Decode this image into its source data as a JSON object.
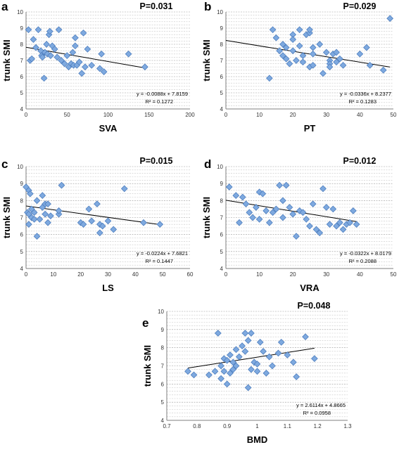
{
  "chart_data": [
    {
      "type": "scatter",
      "panel_letter": "a",
      "p_value": "P=0.031",
      "xlabel": "SVA",
      "ylabel": "trunk SMI",
      "xlim": [
        0,
        200
      ],
      "ylim": [
        4,
        10
      ],
      "x_ticks": [
        "0",
        "50",
        "100",
        "150",
        "200"
      ],
      "y_ticks": [
        "4",
        "5",
        "6",
        "7",
        "8",
        "9",
        "10"
      ],
      "grid": "horizontal dashed",
      "trendline": {
        "slope": -0.0088,
        "intercept": 7.8159
      },
      "equation": "y = -0.0088x + 7.8159",
      "r_squared": "R² = 0.1272",
      "points": [
        [
          3,
          8.9
        ],
        [
          5,
          7.0
        ],
        [
          7,
          7.1
        ],
        [
          9,
          8.3
        ],
        [
          12,
          7.8
        ],
        [
          15,
          8.9
        ],
        [
          18,
          7.6
        ],
        [
          19,
          7.3
        ],
        [
          20,
          7.2
        ],
        [
          22,
          5.9
        ],
        [
          23,
          7.5
        ],
        [
          25,
          8.0
        ],
        [
          26,
          7.4
        ],
        [
          28,
          8.6
        ],
        [
          29,
          8.8
        ],
        [
          30,
          7.3
        ],
        [
          32,
          7.9
        ],
        [
          35,
          7.7
        ],
        [
          38,
          7.2
        ],
        [
          40,
          8.9
        ],
        [
          43,
          7.0
        ],
        [
          47,
          6.8
        ],
        [
          50,
          7.3
        ],
        [
          52,
          6.6
        ],
        [
          55,
          6.8
        ],
        [
          57,
          7.5
        ],
        [
          58,
          6.7
        ],
        [
          60,
          8.4
        ],
        [
          60,
          7.9
        ],
        [
          62,
          6.7
        ],
        [
          65,
          6.9
        ],
        [
          68,
          6.2
        ],
        [
          70,
          8.7
        ],
        [
          72,
          6.6
        ],
        [
          75,
          7.7
        ],
        [
          80,
          6.7
        ],
        [
          90,
          6.5
        ],
        [
          92,
          7.4
        ],
        [
          95,
          6.3
        ],
        [
          125,
          7.4
        ],
        [
          145,
          6.6
        ]
      ]
    },
    {
      "type": "scatter",
      "panel_letter": "b",
      "p_value": "P=0.029",
      "xlabel": "PT",
      "ylabel": "trunk SMI",
      "xlim": [
        0,
        50
      ],
      "ylim": [
        4,
        10
      ],
      "x_ticks": [
        "0",
        "10",
        "20",
        "30",
        "40",
        "50"
      ],
      "y_ticks": [
        "4",
        "5",
        "6",
        "7",
        "8",
        "9",
        "10"
      ],
      "grid": "horizontal dashed",
      "trendline": {
        "slope": -0.0336,
        "intercept": 8.2377
      },
      "equation": "y = -0.0336x + 8.2377",
      "r_squared": "R² = 0.1283",
      "points": [
        [
          13,
          5.9
        ],
        [
          14,
          8.9
        ],
        [
          15,
          8.4
        ],
        [
          16,
          7.6
        ],
        [
          17,
          8.0
        ],
        [
          17,
          7.3
        ],
        [
          18,
          7.8
        ],
        [
          18,
          7.1
        ],
        [
          19,
          6.8
        ],
        [
          20,
          8.6
        ],
        [
          20,
          8.3
        ],
        [
          20,
          7.6
        ],
        [
          21,
          7.0
        ],
        [
          22,
          8.9
        ],
        [
          22,
          7.9
        ],
        [
          23,
          6.9
        ],
        [
          23,
          7.3
        ],
        [
          24,
          8.6
        ],
        [
          25,
          8.7
        ],
        [
          25,
          8.9
        ],
        [
          25,
          6.6
        ],
        [
          26,
          7.8
        ],
        [
          26,
          7.4
        ],
        [
          26,
          6.7
        ],
        [
          28,
          8.0
        ],
        [
          29,
          6.2
        ],
        [
          30,
          7.5
        ],
        [
          31,
          7.0
        ],
        [
          31,
          6.8
        ],
        [
          31,
          6.6
        ],
        [
          32,
          7.4
        ],
        [
          33,
          7.5
        ],
        [
          33,
          6.9
        ],
        [
          34,
          7.1
        ],
        [
          35,
          6.7
        ],
        [
          40,
          7.4
        ],
        [
          42,
          7.8
        ],
        [
          43,
          6.7
        ],
        [
          47,
          6.4
        ],
        [
          49,
          9.6
        ]
      ]
    },
    {
      "type": "scatter",
      "panel_letter": "c",
      "p_value": "P=0.015",
      "xlabel": "LS",
      "ylabel": "trunk SMI",
      "xlim": [
        0,
        60
      ],
      "ylim": [
        4,
        10
      ],
      "x_ticks": [
        "0",
        "10",
        "20",
        "30",
        "40",
        "50",
        "60"
      ],
      "y_ticks": [
        "4",
        "5",
        "6",
        "7",
        "8",
        "9",
        "10"
      ],
      "grid": "horizontal dashed",
      "trendline": {
        "slope": -0.0224,
        "intercept": 7.6821
      },
      "equation": "y = -0.0224x + 7.6821",
      "r_squared": "R² = 0.1447",
      "points": [
        [
          0,
          8.8
        ],
        [
          0.5,
          7.3
        ],
        [
          1,
          8.6
        ],
        [
          1,
          7.2
        ],
        [
          1,
          6.6
        ],
        [
          1.5,
          8.4
        ],
        [
          2,
          7.5
        ],
        [
          2,
          7.0
        ],
        [
          3,
          7.3
        ],
        [
          3,
          6.9
        ],
        [
          4,
          5.9
        ],
        [
          4,
          8.0
        ],
        [
          5,
          6.9
        ],
        [
          6,
          8.3
        ],
        [
          6,
          7.6
        ],
        [
          7,
          7.2
        ],
        [
          7,
          7.8
        ],
        [
          8,
          7.8
        ],
        [
          8,
          6.7
        ],
        [
          9,
          7.1
        ],
        [
          12,
          7.2
        ],
        [
          12,
          7.4
        ],
        [
          13,
          8.9
        ],
        [
          20,
          6.7
        ],
        [
          21,
          6.6
        ],
        [
          23,
          7.5
        ],
        [
          24,
          6.8
        ],
        [
          26,
          7.8
        ],
        [
          27,
          6.1
        ],
        [
          27,
          6.6
        ],
        [
          28,
          6.5
        ],
        [
          30,
          6.8
        ],
        [
          32,
          6.3
        ],
        [
          36,
          8.7
        ],
        [
          43,
          6.7
        ],
        [
          49,
          6.6
        ]
      ]
    },
    {
      "type": "scatter",
      "panel_letter": "d",
      "p_value": "P=0.012",
      "xlabel": "VRA",
      "ylabel": "trunk SMI",
      "xlim": [
        0,
        50
      ],
      "ylim": [
        4,
        10
      ],
      "x_ticks": [
        "0",
        "10",
        "20",
        "30",
        "40",
        "50"
      ],
      "y_ticks": [
        "4",
        "5",
        "6",
        "7",
        "8",
        "9",
        "10"
      ],
      "grid": "horizontal dashed",
      "trendline": {
        "slope": -0.0322,
        "intercept": 8.0179
      },
      "equation": "y = -0.0322x + 8.0179",
      "r_squared": "R² = 0.2088",
      "points": [
        [
          1,
          8.8
        ],
        [
          3,
          8.3
        ],
        [
          4,
          6.7
        ],
        [
          5,
          8.2
        ],
        [
          6,
          7.8
        ],
        [
          7,
          7.3
        ],
        [
          8,
          7.0
        ],
        [
          9,
          7.6
        ],
        [
          10,
          8.5
        ],
        [
          10,
          6.9
        ],
        [
          11,
          8.4
        ],
        [
          12,
          7.4
        ],
        [
          13,
          6.7
        ],
        [
          14,
          7.3
        ],
        [
          15,
          7.5
        ],
        [
          16,
          8.9
        ],
        [
          17,
          8.0
        ],
        [
          17,
          7.0
        ],
        [
          18,
          8.9
        ],
        [
          19,
          7.6
        ],
        [
          20,
          7.2
        ],
        [
          21,
          5.9
        ],
        [
          22,
          7.4
        ],
        [
          23,
          7.3
        ],
        [
          24,
          6.9
        ],
        [
          25,
          6.5
        ],
        [
          26,
          7.8
        ],
        [
          27,
          6.3
        ],
        [
          28,
          6.1
        ],
        [
          29,
          8.7
        ],
        [
          30,
          7.6
        ],
        [
          31,
          6.6
        ],
        [
          32,
          7.5
        ],
        [
          33,
          6.5
        ],
        [
          34,
          6.7
        ],
        [
          35,
          6.3
        ],
        [
          36,
          6.6
        ],
        [
          37,
          6.7
        ],
        [
          38,
          7.4
        ],
        [
          39,
          6.6
        ]
      ]
    },
    {
      "type": "scatter",
      "panel_letter": "e",
      "p_value": "P=0.048",
      "xlabel": "BMD",
      "ylabel": "trunk SMI",
      "xlim": [
        0.7,
        1.3
      ],
      "ylim": [
        4,
        10
      ],
      "x_ticks": [
        "0.7",
        "0.8",
        "0.9",
        "1",
        "1.1",
        "1.2",
        "1.3"
      ],
      "y_ticks": [
        "4",
        "5",
        "6",
        "7",
        "8",
        "9",
        "10"
      ],
      "grid": "horizontal dashed",
      "trendline": {
        "slope": 2.6114,
        "intercept": 4.8665
      },
      "equation": "y = 2.6114x + 4.8665",
      "r_squared": "R² = 0.0958",
      "points": [
        [
          0.77,
          6.7
        ],
        [
          0.79,
          6.5
        ],
        [
          0.84,
          6.5
        ],
        [
          0.86,
          6.7
        ],
        [
          0.87,
          8.8
        ],
        [
          0.88,
          6.3
        ],
        [
          0.88,
          7.0
        ],
        [
          0.89,
          6.7
        ],
        [
          0.89,
          7.4
        ],
        [
          0.9,
          6.0
        ],
        [
          0.9,
          7.3
        ],
        [
          0.91,
          6.6
        ],
        [
          0.91,
          7.6
        ],
        [
          0.92,
          6.8
        ],
        [
          0.92,
          7.2
        ],
        [
          0.93,
          7.0
        ],
        [
          0.93,
          7.9
        ],
        [
          0.94,
          7.5
        ],
        [
          0.95,
          8.1
        ],
        [
          0.96,
          8.8
        ],
        [
          0.96,
          7.8
        ],
        [
          0.97,
          5.8
        ],
        [
          0.97,
          8.4
        ],
        [
          0.98,
          8.8
        ],
        [
          0.98,
          6.8
        ],
        [
          0.99,
          7.2
        ],
        [
          1.0,
          7.1
        ],
        [
          1.0,
          6.7
        ],
        [
          1.01,
          8.3
        ],
        [
          1.02,
          7.8
        ],
        [
          1.03,
          6.6
        ],
        [
          1.04,
          7.5
        ],
        [
          1.05,
          7.0
        ],
        [
          1.07,
          7.7
        ],
        [
          1.08,
          8.3
        ],
        [
          1.1,
          7.6
        ],
        [
          1.12,
          7.2
        ],
        [
          1.13,
          6.4
        ],
        [
          1.16,
          8.6
        ],
        [
          1.19,
          7.4
        ]
      ]
    }
  ]
}
